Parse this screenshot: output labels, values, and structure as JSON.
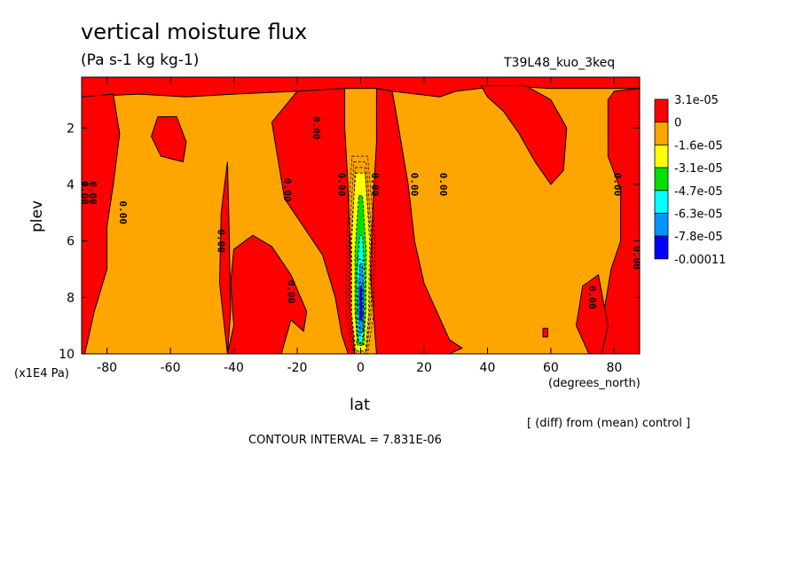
{
  "chart_data": {
    "type": "contour",
    "title": "vertical moisture flux",
    "units": "(Pa s-1 kg kg-1)",
    "case_label": "T39L48_kuo_3keq",
    "xlabel": "lat",
    "xunit": "(degrees_north)",
    "ylabel": "plev",
    "yunit": "(x1E4 Pa)",
    "xlim": [
      -88,
      88
    ],
    "ylim": [
      10,
      0.2
    ],
    "xticks": [
      -80,
      -60,
      -40,
      -20,
      0,
      20,
      40,
      60,
      80
    ],
    "xticklabels": [
      "-80",
      "-60",
      "-40",
      "-20",
      "0",
      "20",
      "40",
      "60",
      "80"
    ],
    "yticks": [
      2,
      4,
      6,
      8,
      10
    ],
    "yticklabels": [
      "2",
      "4",
      "6",
      "8",
      "10"
    ],
    "note": "[ (diff) from (mean) control ]",
    "contour_interval": "CONTOUR INTERVAL = 7.831E-06",
    "contour_zero_label": "0.00",
    "colorbar": {
      "labels": [
        "3.1e-05",
        "0",
        "-1.6e-05",
        "-3.1e-05",
        "-4.7e-05",
        "-6.3e-05",
        "-7.8e-05",
        "-0.00011"
      ],
      "colors": [
        "#ff0000",
        "#ffa500",
        "#ffff00",
        "#00e000",
        "#00ffff",
        "#0096ff",
        "#0000ff"
      ]
    },
    "positive_regions": [
      {
        "name": "top-band",
        "points": [
          [
            -88,
            0.2
          ],
          [
            88,
            0.2
          ],
          [
            88,
            0.6
          ],
          [
            60,
            0.6
          ],
          [
            45,
            0.5
          ],
          [
            30,
            0.7
          ],
          [
            25,
            0.9
          ],
          [
            10,
            0.7
          ],
          [
            5,
            0.6
          ],
          [
            -5,
            0.6
          ],
          [
            -20,
            0.7
          ],
          [
            -40,
            0.8
          ],
          [
            -55,
            0.9
          ],
          [
            -70,
            0.8
          ],
          [
            -88,
            0.9
          ]
        ]
      },
      {
        "name": "nh-tower",
        "points": [
          [
            5,
            0.6
          ],
          [
            10,
            0.7
          ],
          [
            12,
            2
          ],
          [
            15,
            4
          ],
          [
            17,
            6
          ],
          [
            20,
            7.5
          ],
          [
            28,
            9.5
          ],
          [
            32,
            9.8
          ],
          [
            28,
            10
          ],
          [
            5,
            10
          ],
          [
            3,
            7
          ],
          [
            4,
            4.5
          ],
          [
            5,
            2.5
          ]
        ]
      },
      {
        "name": "nh-right-blob",
        "points": [
          [
            38,
            0.5
          ],
          [
            52,
            0.5
          ],
          [
            60,
            1
          ],
          [
            65,
            2
          ],
          [
            64,
            3.5
          ],
          [
            60,
            4
          ],
          [
            55,
            3.2
          ],
          [
            50,
            2.2
          ],
          [
            45,
            1.4
          ],
          [
            40,
            0.9
          ]
        ]
      },
      {
        "name": "sh-tower",
        "points": [
          [
            -5,
            0.6
          ],
          [
            -20,
            0.7
          ],
          [
            -28,
            1.8
          ],
          [
            -24,
            4.5
          ],
          [
            -18,
            5.5
          ],
          [
            -12,
            6.5
          ],
          [
            -8,
            8
          ],
          [
            -6,
            9.3
          ],
          [
            -4,
            10
          ],
          [
            -2,
            10
          ],
          [
            -3,
            7
          ],
          [
            -4,
            4
          ],
          [
            -5,
            2
          ]
        ]
      },
      {
        "name": "sh-lower-blob",
        "points": [
          [
            -34,
            5.8
          ],
          [
            -40,
            6.3
          ],
          [
            -41,
            7.5
          ],
          [
            -40,
            9
          ],
          [
            -42,
            10
          ],
          [
            -25,
            10
          ],
          [
            -22,
            8.8
          ],
          [
            -18,
            9.2
          ],
          [
            -17,
            8.5
          ],
          [
            -22,
            7.2
          ],
          [
            -28,
            6.2
          ]
        ]
      },
      {
        "name": "sh-thin-spike",
        "points": [
          [
            -42,
            3.2
          ],
          [
            -44,
            5
          ],
          [
            -44.5,
            7.5
          ],
          [
            -42,
            10
          ],
          [
            -41,
            8.5
          ],
          [
            -41.5,
            5.5
          ]
        ]
      },
      {
        "name": "left-edge-tower",
        "points": [
          [
            -88,
            0.9
          ],
          [
            -78,
            0.8
          ],
          [
            -76,
            2.2
          ],
          [
            -78,
            4
          ],
          [
            -80,
            5.5
          ],
          [
            -80,
            7
          ],
          [
            -84,
            8.5
          ],
          [
            -87,
            10
          ],
          [
            -88,
            10
          ]
        ]
      },
      {
        "name": "sh-small-blob",
        "points": [
          [
            -64,
            1.6
          ],
          [
            -58,
            1.6
          ],
          [
            -55,
            2.5
          ],
          [
            -56,
            3.2
          ],
          [
            -63,
            3
          ],
          [
            -66,
            2.3
          ]
        ]
      },
      {
        "name": "right-edge-tower",
        "points": [
          [
            88,
            0.6
          ],
          [
            80,
            0.7
          ],
          [
            78,
            1
          ],
          [
            78,
            3
          ],
          [
            82,
            4.2
          ],
          [
            82,
            6
          ],
          [
            79,
            7
          ],
          [
            76,
            9
          ],
          [
            75,
            10
          ],
          [
            88,
            10
          ]
        ]
      },
      {
        "name": "nh-low-blob",
        "points": [
          [
            70,
            7.6
          ],
          [
            75,
            7.2
          ],
          [
            78,
            9
          ],
          [
            76,
            10
          ],
          [
            72,
            10
          ],
          [
            68,
            9
          ]
        ]
      },
      {
        "name": "nh-dot",
        "points": [
          [
            57.5,
            9.1
          ],
          [
            59,
            9.1
          ],
          [
            59,
            9.4
          ],
          [
            57.5,
            9.4
          ]
        ]
      }
    ],
    "negative_core_levels": [
      {
        "color": "#ffff00",
        "points": [
          [
            -1.6,
            3.6
          ],
          [
            1.4,
            3.6
          ],
          [
            3.2,
            6
          ],
          [
            2.8,
            8.5
          ],
          [
            1.8,
            9.9
          ],
          [
            -1.8,
            9.9
          ],
          [
            -3,
            8.5
          ],
          [
            -3.1,
            6
          ]
        ]
      },
      {
        "color": "#00e000",
        "points": [
          [
            -0.6,
            4.4
          ],
          [
            0.6,
            4.4
          ],
          [
            1.8,
            6.4
          ],
          [
            1.6,
            8.5
          ],
          [
            1,
            9.7
          ],
          [
            -1,
            9.7
          ],
          [
            -1.8,
            8.5
          ],
          [
            -1.8,
            6.4
          ]
        ]
      },
      {
        "color": "#00ffff",
        "points": [
          [
            -0.3,
            5.8
          ],
          [
            0.6,
            5.8
          ],
          [
            1.2,
            7.2
          ],
          [
            1.2,
            8.8
          ],
          [
            0.6,
            9.6
          ],
          [
            -0.6,
            9.6
          ],
          [
            -1.2,
            8.8
          ],
          [
            -1.2,
            7.2
          ]
        ]
      },
      {
        "color": "#0096ff",
        "points": [
          [
            -0.2,
            6.8
          ],
          [
            0.5,
            6.8
          ],
          [
            0.9,
            7.8
          ],
          [
            0.8,
            9.2
          ],
          [
            -0.4,
            9.3
          ],
          [
            -0.9,
            8.2
          ]
        ]
      },
      {
        "color": "#0000ff",
        "points": [
          [
            -0.2,
            7.6
          ],
          [
            0.4,
            7.6
          ],
          [
            0.5,
            8.8
          ],
          [
            -0.3,
            8.8
          ]
        ]
      }
    ],
    "zero_label_points": [
      [
        -88,
        4.3
      ],
      [
        -85.5,
        4.3
      ],
      [
        -76,
        5
      ],
      [
        -45,
        6
      ],
      [
        -24,
        4.2
      ],
      [
        -23,
        7.8
      ],
      [
        -7,
        4
      ],
      [
        3.5,
        4
      ],
      [
        16,
        4
      ],
      [
        -15,
        2
      ],
      [
        25,
        4
      ],
      [
        80,
        4
      ],
      [
        72,
        8
      ],
      [
        86,
        6.6
      ]
    ]
  }
}
